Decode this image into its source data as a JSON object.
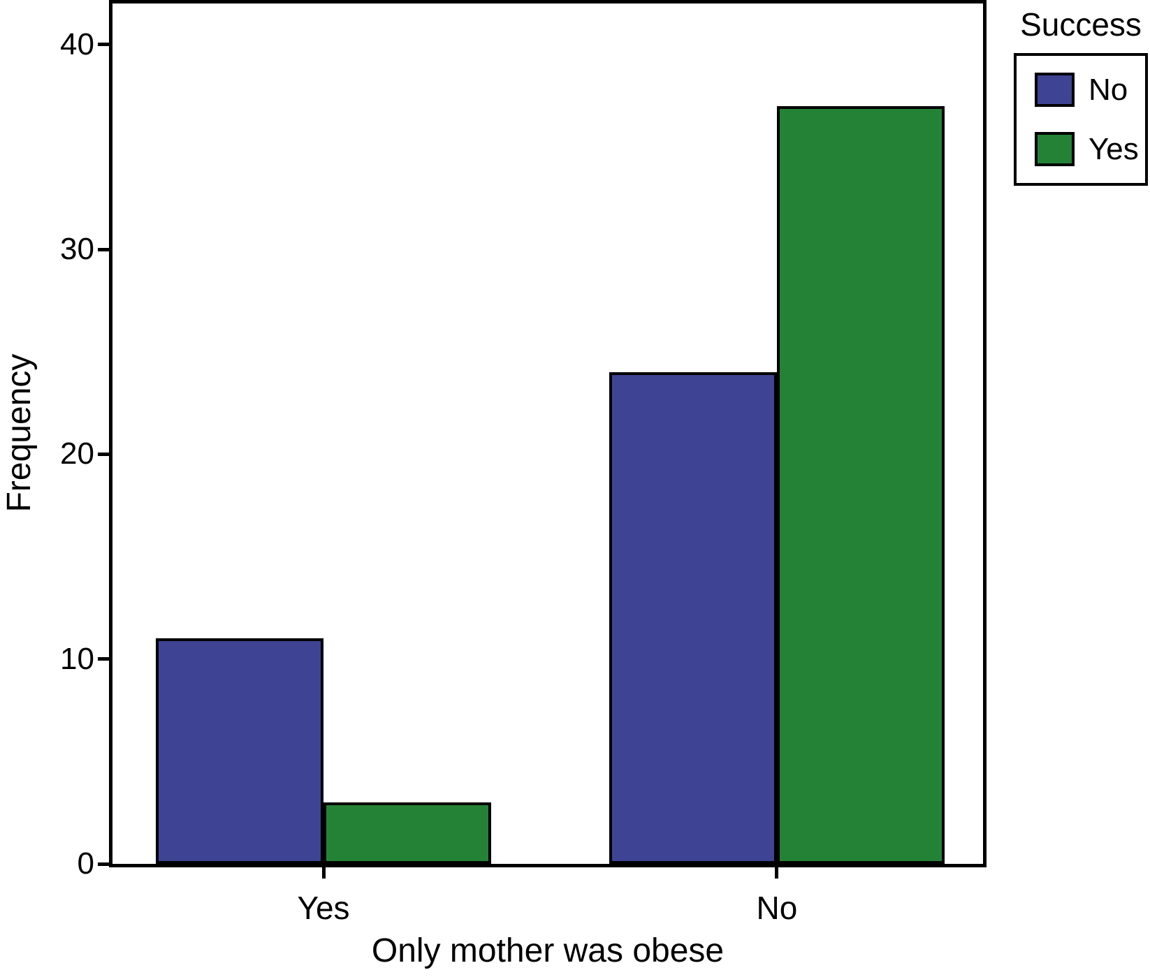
{
  "chart_data": {
    "type": "bar",
    "categories": [
      "Yes",
      "No"
    ],
    "series": [
      {
        "name": "No",
        "color": "#3F4394",
        "values": [
          11,
          24
        ]
      },
      {
        "name": "Yes",
        "color": "#248236",
        "values": [
          3,
          37
        ]
      }
    ],
    "xlabel": "Only mother was obese",
    "ylabel": "Frequency",
    "y_ticks": [
      0,
      10,
      20,
      30,
      40
    ],
    "ylim": [
      0,
      42
    ],
    "legend_title": "Success",
    "legend_position": "top-right",
    "grid": false,
    "bar_edge_color": "#000000",
    "background_color": "#FFFFFF"
  }
}
